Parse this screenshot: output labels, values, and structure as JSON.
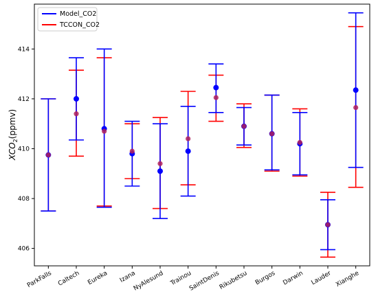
{
  "chart_data": {
    "type": "errorbar",
    "categories": [
      "ParkFalls",
      "Caltech",
      "Eureka",
      "Izana",
      "NyAlesund",
      "Trainou",
      "SaintDenis",
      "Rikubetsu",
      "Burgos",
      "Darwin",
      "Lauder",
      "Xianghe"
    ],
    "ylabel_main": "XCO",
    "ylabel_sub": "2",
    "ylabel_unit": "(ppmv)",
    "ylim": [
      405.3,
      415.8
    ],
    "yticks": [
      406,
      408,
      410,
      412,
      414
    ],
    "legend_position": "top-left",
    "series": [
      {
        "name": "Model_CO2",
        "color": "#0000ff",
        "mean": [
          409.75,
          412.0,
          410.8,
          409.8,
          409.1,
          409.9,
          412.45,
          410.9,
          410.6,
          410.2,
          406.95,
          412.35
        ],
        "low": [
          407.5,
          410.35,
          407.65,
          408.5,
          407.2,
          408.1,
          411.45,
          410.15,
          409.15,
          408.95,
          405.95,
          409.25
        ],
        "high": [
          412.0,
          413.65,
          414.0,
          411.1,
          411.0,
          411.7,
          413.4,
          411.65,
          412.15,
          411.45,
          407.95,
          415.45
        ]
      },
      {
        "name": "TCCON_CO2",
        "color": "#ff0000",
        "mean": [
          409.75,
          411.4,
          410.7,
          409.9,
          409.4,
          410.4,
          412.05,
          410.9,
          410.6,
          410.25,
          406.95,
          411.65
        ],
        "low": [
          407.5,
          409.7,
          407.7,
          408.8,
          407.6,
          408.55,
          411.1,
          410.05,
          409.1,
          408.9,
          405.65,
          408.45
        ],
        "high": [
          412.0,
          413.15,
          413.65,
          411.0,
          411.25,
          412.3,
          412.95,
          411.8,
          412.15,
          411.6,
          408.25,
          414.9
        ]
      }
    ]
  }
}
